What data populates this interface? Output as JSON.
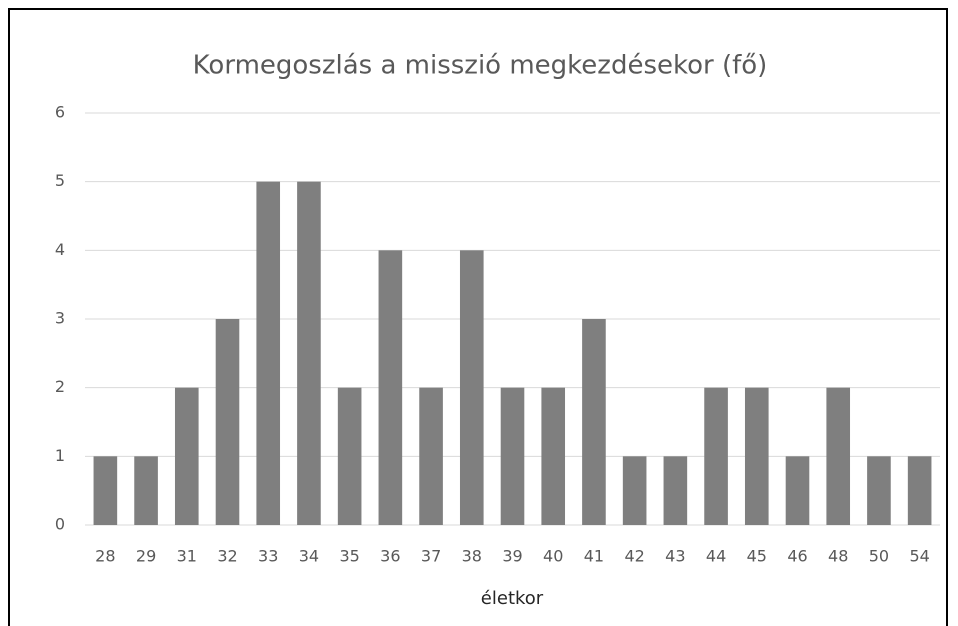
{
  "chart_data": {
    "type": "bar",
    "title": "Kormegoszlás a misszió megkezdésekor (fő)",
    "x_label": "életkor",
    "categories": [
      "28",
      "29",
      "31",
      "32",
      "33",
      "34",
      "35",
      "36",
      "37",
      "38",
      "39",
      "40",
      "41",
      "42",
      "43",
      "44",
      "45",
      "46",
      "48",
      "50",
      "54"
    ],
    "values": [
      1,
      1,
      2,
      3,
      5,
      5,
      2,
      4,
      2,
      4,
      2,
      2,
      3,
      1,
      1,
      2,
      2,
      1,
      2,
      1,
      1
    ],
    "color": "#7f7f7f",
    "ylim": [
      0,
      6
    ],
    "yticks": [
      0,
      1,
      2,
      3,
      4,
      5,
      6
    ],
    "grid": true
  }
}
